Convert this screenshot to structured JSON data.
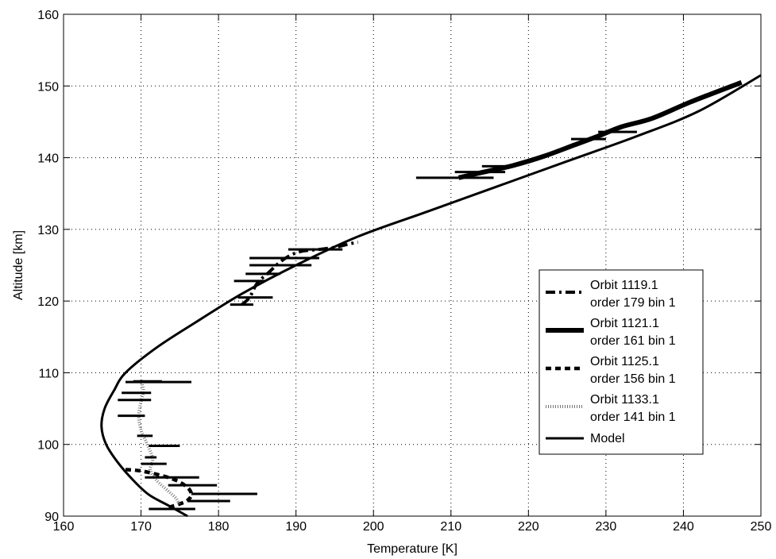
{
  "chart_data": {
    "type": "line",
    "title": "",
    "xlabel": "Temperature [K]",
    "ylabel": "Altitude [km]",
    "xlim": [
      160,
      250
    ],
    "ylim": [
      90,
      160
    ],
    "xticks": [
      "160",
      "170",
      "180",
      "190",
      "200",
      "210",
      "220",
      "230",
      "240",
      "250"
    ],
    "yticks": [
      "90",
      "100",
      "110",
      "120",
      "130",
      "140",
      "150",
      "160"
    ],
    "grid": true,
    "legend_position": "right",
    "legend": [
      {
        "line1": "Orbit 1119.1",
        "line2": "order 179 bin 1",
        "style": "dashdot"
      },
      {
        "line1": "Orbit 1121.1",
        "line2": "order 161 bin 1",
        "style": "solid-thick"
      },
      {
        "line1": "Orbit 1125.1",
        "line2": "order 156 bin 1",
        "style": "dashed"
      },
      {
        "line1": "Orbit 1133.1",
        "line2": "order 141 bin 1",
        "style": "dotted"
      },
      {
        "line1": "Model",
        "line2": "",
        "style": "solid"
      }
    ],
    "series": [
      {
        "name": "Orbit 1119.1 order 179 bin 1",
        "style": "dashdot",
        "points": [
          [
            183,
            119.5
          ],
          [
            184,
            120.5
          ],
          [
            185,
            122.5
          ],
          [
            186.5,
            124
          ],
          [
            188,
            125.5
          ],
          [
            189.5,
            126.5
          ],
          [
            191,
            127
          ],
          [
            193,
            127.2
          ],
          [
            195,
            127.5
          ],
          [
            197,
            128
          ],
          [
            198,
            128.2
          ]
        ],
        "errorbars": [
          {
            "y": 119.5,
            "xmin": 181.5,
            "xmax": 184.5
          },
          {
            "y": 120.5,
            "xmin": 182.5,
            "xmax": 187
          },
          {
            "y": 122.8,
            "xmin": 182,
            "xmax": 186
          },
          {
            "y": 123.8,
            "xmin": 183.5,
            "xmax": 188
          },
          {
            "y": 125,
            "xmin": 184,
            "xmax": 192
          },
          {
            "y": 126,
            "xmin": 184,
            "xmax": 193
          },
          {
            "y": 127.2,
            "xmin": 189,
            "xmax": 196
          }
        ]
      },
      {
        "name": "Orbit 1121.1 order 161 bin 1",
        "style": "solid-thick",
        "points": [
          [
            211,
            137.2
          ],
          [
            213,
            137.7
          ],
          [
            215.5,
            138.3
          ],
          [
            218,
            138.9
          ],
          [
            222,
            140.2
          ],
          [
            226,
            141.8
          ],
          [
            229,
            143
          ],
          [
            232,
            144.3
          ],
          [
            236,
            145.5
          ],
          [
            241,
            147.8
          ],
          [
            247.5,
            150.5
          ]
        ],
        "errorbars": [
          {
            "y": 137.2,
            "xmin": 205.5,
            "xmax": 215.5
          },
          {
            "y": 138,
            "xmin": 210.5,
            "xmax": 217
          },
          {
            "y": 138.8,
            "xmin": 214,
            "xmax": 218
          },
          {
            "y": 142.6,
            "xmin": 225.5,
            "xmax": 230
          },
          {
            "y": 143.6,
            "xmin": 229,
            "xmax": 234
          }
        ]
      },
      {
        "name": "Orbit 1125.1 order 156 bin 1",
        "style": "dashed",
        "points": [
          [
            168,
            96.5
          ],
          [
            170,
            96.3
          ],
          [
            172.5,
            95.7
          ],
          [
            174.5,
            95
          ],
          [
            176,
            94
          ],
          [
            176.5,
            93
          ],
          [
            176,
            92.2
          ],
          [
            175,
            91.7
          ],
          [
            173.5,
            91.2
          ]
        ],
        "errorbars": [
          {
            "y": 95.4,
            "xmin": 170.5,
            "xmax": 177.5
          },
          {
            "y": 94.3,
            "xmin": 173.5,
            "xmax": 179.8
          },
          {
            "y": 93.1,
            "xmin": 176.5,
            "xmax": 185
          },
          {
            "y": 92.1,
            "xmin": 176,
            "xmax": 181.5
          },
          {
            "y": 91,
            "xmin": 171,
            "xmax": 177
          }
        ]
      },
      {
        "name": "Orbit 1133.1 order 141 bin 1",
        "style": "dotted",
        "points": [
          [
            170,
            109
          ],
          [
            170.3,
            107.5
          ],
          [
            170,
            106
          ],
          [
            169.7,
            104
          ],
          [
            170,
            102
          ],
          [
            170.8,
            100
          ],
          [
            171.5,
            98
          ],
          [
            171.2,
            96.5
          ],
          [
            172,
            95
          ],
          [
            173.5,
            93.5
          ],
          [
            174.5,
            92.5
          ],
          [
            175,
            91.5
          ]
        ],
        "errorbars": [
          {
            "y": 108.8,
            "xmin": 169,
            "xmax": 172.7
          },
          {
            "y": 108.7,
            "xmin": 168,
            "xmax": 176.5
          },
          {
            "y": 107.2,
            "xmin": 167.5,
            "xmax": 171.3
          },
          {
            "y": 106.2,
            "xmin": 167,
            "xmax": 171.3
          },
          {
            "y": 104,
            "xmin": 167,
            "xmax": 170.5
          },
          {
            "y": 101.2,
            "xmin": 169.5,
            "xmax": 171.5
          },
          {
            "y": 99.8,
            "xmin": 171,
            "xmax": 175
          },
          {
            "y": 98.2,
            "xmin": 170.5,
            "xmax": 172
          },
          {
            "y": 97.3,
            "xmin": 170,
            "xmax": 173.3
          }
        ]
      },
      {
        "name": "Model",
        "style": "solid",
        "points": [
          [
            176,
            90
          ],
          [
            173.5,
            91.5
          ],
          [
            171,
            93
          ],
          [
            169,
            95
          ],
          [
            167,
            97.5
          ],
          [
            165.5,
            100
          ],
          [
            164.9,
            102.5
          ],
          [
            165.3,
            105
          ],
          [
            166.5,
            107.5
          ],
          [
            168,
            110
          ],
          [
            172,
            113.5
          ],
          [
            177,
            117
          ],
          [
            183,
            121
          ],
          [
            190,
            125
          ],
          [
            198,
            129
          ],
          [
            207,
            132.5
          ],
          [
            216,
            136
          ],
          [
            225,
            139.5
          ],
          [
            234,
            143
          ],
          [
            242,
            146.5
          ],
          [
            250,
            151.5
          ]
        ]
      }
    ]
  }
}
